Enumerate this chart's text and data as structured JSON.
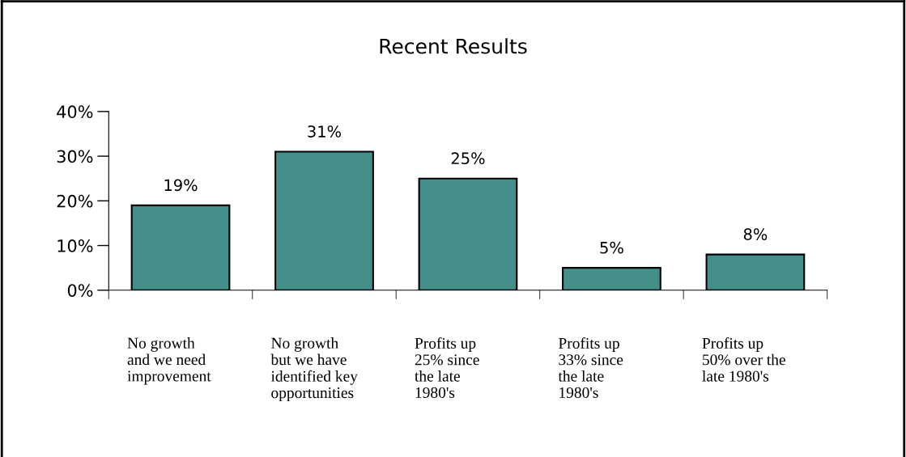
{
  "chart_data": {
    "type": "bar",
    "title": "Recent Results",
    "categories": [
      "No growth\nand we need\nimprovement",
      "No growth\nbut we have\nidentified key\nopportunities",
      "Profits up\n25% since\nthe late\n1980's",
      "Profits up\n33% since\nthe late\n1980's",
      "Profits up\n50% over the\nlate 1980's"
    ],
    "values": [
      19,
      31,
      25,
      5,
      8
    ],
    "value_labels": [
      "19%",
      "31%",
      "25%",
      "5%",
      "8%"
    ],
    "color": "#458f8b",
    "ylim": [
      0,
      40
    ],
    "yticks": [
      {
        "value": 0,
        "label": "0%"
      },
      {
        "value": 10,
        "label": "10%"
      },
      {
        "value": 20,
        "label": "20%"
      },
      {
        "value": 30,
        "label": "30%"
      },
      {
        "value": 40,
        "label": "40%"
      }
    ],
    "grid": false
  }
}
